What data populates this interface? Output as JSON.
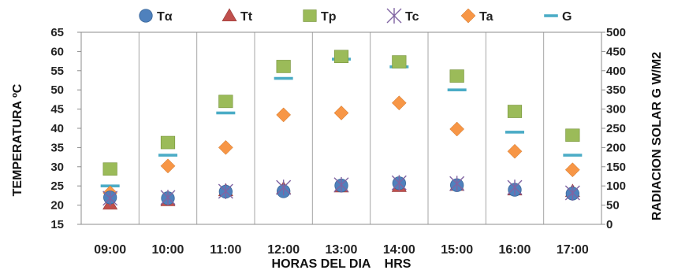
{
  "chart_data": {
    "type": "scatter",
    "categories": [
      "09:00",
      "10:00",
      "11:00",
      "12:00",
      "13:00",
      "14:00",
      "15:00",
      "16:00",
      "17:00"
    ],
    "xlabel": "HORAS DEL DIA    HRS",
    "ylabel": "TEMPERATURA ºC",
    "ylabel_right": "RADIACION SOLAR G W/M2",
    "ylim": [
      15,
      65
    ],
    "yticks": [
      15,
      20,
      25,
      30,
      35,
      40,
      45,
      50,
      55,
      60,
      65
    ],
    "ylim_right": [
      0,
      500
    ],
    "yticks_right": [
      0,
      50,
      100,
      150,
      200,
      250,
      300,
      350,
      400,
      450,
      500
    ],
    "grid": "vertical",
    "legend_position": "top",
    "series": [
      {
        "name": "Tα",
        "axis": "left",
        "marker": "circle",
        "color": "#4f81bd",
        "values": [
          22,
          21.8,
          23.5,
          23.6,
          25.1,
          25.7,
          25.2,
          24,
          23
        ]
      },
      {
        "name": "Tt",
        "axis": "left",
        "marker": "triangle",
        "color": "#c0504d",
        "values": [
          20.3,
          21.2,
          23.8,
          24.3,
          24.8,
          24.9,
          25.2,
          24,
          23.6
        ]
      },
      {
        "name": "Tp",
        "axis": "left",
        "marker": "square",
        "color": "#9bbb59",
        "values": [
          29.4,
          36.3,
          47,
          56.1,
          58.7,
          57.3,
          53.6,
          44.4,
          38.2
        ]
      },
      {
        "name": "Tc",
        "axis": "left",
        "marker": "star",
        "color": "#8064a2",
        "values": [
          21.8,
          22.0,
          23.6,
          24.6,
          25.3,
          25.8,
          25.6,
          24.6,
          23.2
        ]
      },
      {
        "name": "Ta",
        "axis": "left",
        "marker": "diamond",
        "color": "#f79646",
        "values": [
          23.2,
          30.2,
          35,
          43.5,
          44,
          46.6,
          39.8,
          34,
          29.2
        ]
      },
      {
        "name": "G",
        "axis": "right",
        "marker": "dash",
        "color": "#4bacc6",
        "values": [
          100,
          180,
          290,
          380,
          430,
          410,
          350,
          240,
          180
        ]
      }
    ]
  }
}
